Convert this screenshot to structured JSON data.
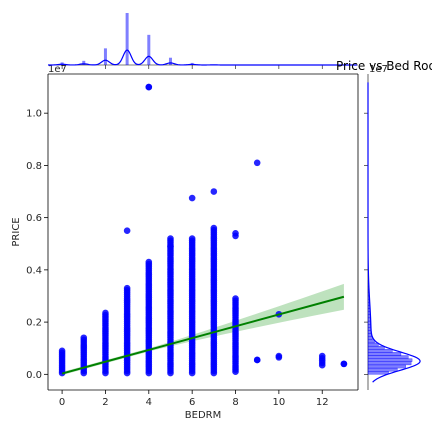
{
  "chart_data": {
    "type": "scatter",
    "title": "Price vs Bed Rooms",
    "xlabel": "BEDRM",
    "ylabel": "PRICE",
    "y_offset_label": "1e7",
    "y_offset_label_right": "1e7",
    "xlim": [
      -0.65,
      13.65
    ],
    "ylim": [
      -0.06,
      1.15
    ],
    "x_ticks": [
      0,
      2,
      4,
      6,
      8,
      10,
      12
    ],
    "y_ticks": [
      0.0,
      0.2,
      0.4,
      0.6,
      0.8,
      1.0
    ],
    "y_tick_labels": [
      "0.0",
      "0.2",
      "0.4",
      "0.6",
      "0.8",
      "1.0"
    ],
    "grid": false,
    "colors": {
      "points": "#0000ff",
      "regression_line": "#008000",
      "confidence_band": "#a8d8a8",
      "marginal": "#0000ff"
    },
    "regression_line": {
      "x": [
        0,
        13
      ],
      "y": [
        0.003,
        0.297
      ]
    },
    "points": [
      {
        "x": 0,
        "y_min": 0.005,
        "y_max": 0.09
      },
      {
        "x": 1,
        "y_min": 0.005,
        "y_max": 0.14
      },
      {
        "x": 2,
        "y_min": 0.005,
        "y_max": 0.235
      },
      {
        "x": 3,
        "y_min": 0.005,
        "y_max": 0.33,
        "outliers": [
          0.55
        ]
      },
      {
        "x": 4,
        "y_min": 0.005,
        "y_max": 0.43,
        "outliers": [
          1.1,
          1.1
        ]
      },
      {
        "x": 5,
        "y_min": 0.005,
        "y_max": 0.52,
        "outliers": [
          0.49
        ]
      },
      {
        "x": 6,
        "y_min": 0.005,
        "y_max": 0.52,
        "outliers": [
          0.675
        ]
      },
      {
        "x": 7,
        "y_min": 0.005,
        "y_max": 0.56,
        "outliers": [
          0.7
        ]
      },
      {
        "x": 8,
        "y_min": 0.01,
        "y_max": 0.29,
        "outliers": [
          0.53,
          0.54
        ]
      },
      {
        "x": 9,
        "y_min": 0.055,
        "y_max": 0.055,
        "outliers": [
          0.81
        ]
      },
      {
        "x": 10,
        "y_min": 0.065,
        "y_max": 0.07,
        "outliers": [
          0.23
        ]
      },
      {
        "x": 12,
        "y_min": 0.035,
        "y_max": 0.07
      },
      {
        "x": 13,
        "y_min": 0.04,
        "y_max": 0.04
      }
    ],
    "marginal_x": {
      "type": "histogram+kde",
      "bins": [
        {
          "x": 0,
          "count": 0.05
        },
        {
          "x": 1,
          "count": 0.08
        },
        {
          "x": 2,
          "count": 0.32
        },
        {
          "x": 3,
          "count": 1.0
        },
        {
          "x": 4,
          "count": 0.58
        },
        {
          "x": 5,
          "count": 0.14
        },
        {
          "x": 6,
          "count": 0.04
        },
        {
          "x": 7,
          "count": 0.01
        }
      ]
    },
    "marginal_y": {
      "type": "histogram+kde",
      "peak_price": 0.05
    }
  }
}
